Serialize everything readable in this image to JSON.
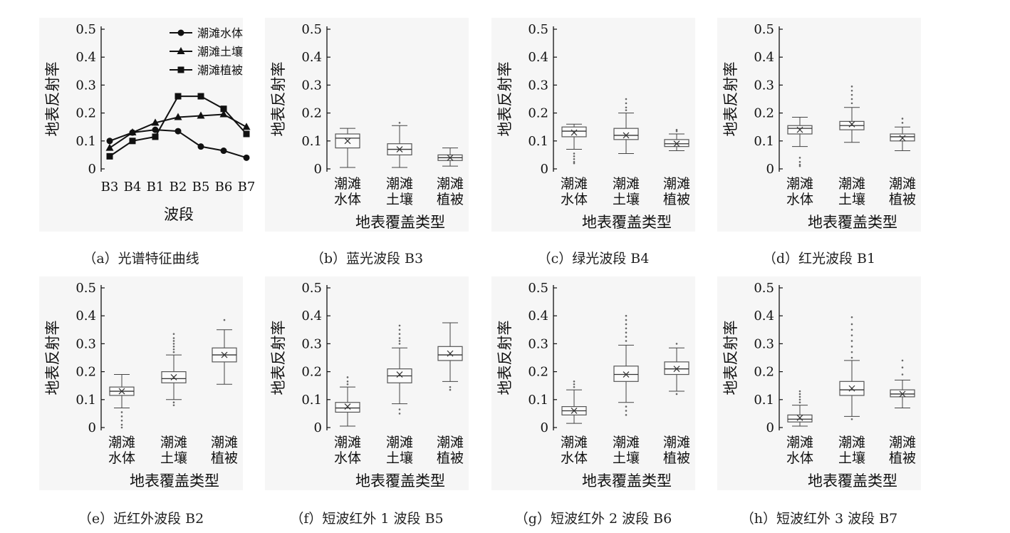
{
  "chart_data": [
    {
      "id": "a",
      "type": "line",
      "caption": "（a）光谱特征曲线",
      "xlabel": "波段",
      "ylabel": "地表反射率",
      "categories": [
        "B3",
        "B4",
        "B1",
        "B2",
        "B5",
        "B6",
        "B7"
      ],
      "ylim": [
        0,
        0.5
      ],
      "yticks": [
        "0",
        "0.1",
        "0.2",
        "0.3",
        "0.4",
        "0.5"
      ],
      "legend_position": "top-right",
      "series": [
        {
          "name": "潮滩水体",
          "marker": "circle",
          "values": [
            0.1,
            0.13,
            0.14,
            0.135,
            0.08,
            0.065,
            0.04
          ]
        },
        {
          "name": "潮滩土壤",
          "marker": "triangle",
          "values": [
            0.075,
            0.13,
            0.165,
            0.185,
            0.19,
            0.195,
            0.15
          ]
        },
        {
          "name": "潮滩植被",
          "marker": "square",
          "values": [
            0.045,
            0.1,
            0.115,
            0.26,
            0.26,
            0.215,
            0.125
          ]
        }
      ]
    },
    {
      "id": "b",
      "type": "box",
      "caption": "（b）蓝光波段 B3",
      "xlabel": "地表覆盖类型",
      "ylabel": "地表反射率",
      "categories": [
        [
          "潮滩",
          "水体"
        ],
        [
          "潮滩",
          "土壤"
        ],
        [
          "潮滩",
          "植被"
        ]
      ],
      "ylim": [
        0,
        0.5
      ],
      "yticks": [
        "0",
        "0.1",
        "0.2",
        "0.3",
        "0.4",
        "0.5"
      ],
      "boxes": [
        {
          "min": 0.005,
          "q1": 0.075,
          "median": 0.11,
          "q3": 0.125,
          "max": 0.145,
          "mean": 0.1,
          "outliers": []
        },
        {
          "min": 0.005,
          "q1": 0.05,
          "median": 0.07,
          "q3": 0.09,
          "max": 0.155,
          "mean": 0.07,
          "outliers": [
            0.165
          ]
        },
        {
          "min": 0.01,
          "q1": 0.03,
          "median": 0.04,
          "q3": 0.05,
          "max": 0.075,
          "mean": 0.04,
          "outliers": []
        }
      ]
    },
    {
      "id": "c",
      "type": "box",
      "caption": "（c）绿光波段 B4",
      "xlabel": "地表覆盖类型",
      "ylabel": "地表反射率",
      "categories": [
        [
          "潮滩",
          "水体"
        ],
        [
          "潮滩",
          "土壤"
        ],
        [
          "潮滩",
          "植被"
        ]
      ],
      "ylim": [
        0,
        0.5
      ],
      "yticks": [
        "0",
        "0.1",
        "0.2",
        "0.3",
        "0.4",
        "0.5"
      ],
      "boxes": [
        {
          "min": 0.07,
          "q1": 0.115,
          "median": 0.135,
          "q3": 0.15,
          "max": 0.16,
          "mean": 0.13,
          "outliers": [
            0.055,
            0.045,
            0.035,
            0.025,
            0.02
          ]
        },
        {
          "min": 0.055,
          "q1": 0.105,
          "median": 0.12,
          "q3": 0.145,
          "max": 0.2,
          "mean": 0.12,
          "outliers": [
            0.21,
            0.22,
            0.235,
            0.25
          ]
        },
        {
          "min": 0.065,
          "q1": 0.08,
          "median": 0.09,
          "q3": 0.105,
          "max": 0.125,
          "mean": 0.09,
          "outliers": [
            0.135,
            0.14
          ]
        }
      ]
    },
    {
      "id": "d",
      "type": "box",
      "caption": "（d）红光波段 B1",
      "xlabel": "地表覆盖类型",
      "ylabel": "地表反射率",
      "categories": [
        [
          "潮滩",
          "水体"
        ],
        [
          "潮滩",
          "土壤"
        ],
        [
          "潮滩",
          "植被"
        ]
      ],
      "ylim": [
        0,
        0.5
      ],
      "yticks": [
        "0",
        "0.1",
        "0.2",
        "0.3",
        "0.4",
        "0.5"
      ],
      "boxes": [
        {
          "min": 0.08,
          "q1": 0.125,
          "median": 0.145,
          "q3": 0.155,
          "max": 0.185,
          "mean": 0.14,
          "outliers": [
            0.04,
            0.025,
            0.015,
            0.01
          ]
        },
        {
          "min": 0.095,
          "q1": 0.14,
          "median": 0.155,
          "q3": 0.17,
          "max": 0.22,
          "mean": 0.16,
          "outliers": [
            0.235,
            0.25,
            0.265,
            0.28,
            0.295
          ]
        },
        {
          "min": 0.065,
          "q1": 0.1,
          "median": 0.115,
          "q3": 0.125,
          "max": 0.15,
          "mean": 0.11,
          "outliers": [
            0.165,
            0.18
          ]
        }
      ]
    },
    {
      "id": "e",
      "type": "box",
      "caption": "（e）近红外波段 B2",
      "xlabel": "地表覆盖类型",
      "ylabel": "地表反射率",
      "categories": [
        [
          "潮滩",
          "水体"
        ],
        [
          "潮滩",
          "土壤"
        ],
        [
          "潮滩",
          "植被"
        ]
      ],
      "ylim": [
        0,
        0.5
      ],
      "yticks": [
        "0",
        "0.1",
        "0.2",
        "0.3",
        "0.4",
        "0.5"
      ],
      "boxes": [
        {
          "min": 0.07,
          "q1": 0.115,
          "median": 0.13,
          "q3": 0.145,
          "max": 0.19,
          "mean": 0.13,
          "outliers": [
            0.055,
            0.04,
            0.025,
            0.01,
            0.0
          ]
        },
        {
          "min": 0.1,
          "q1": 0.16,
          "median": 0.175,
          "q3": 0.2,
          "max": 0.26,
          "mean": 0.18,
          "outliers": [
            0.09,
            0.08,
            0.27,
            0.28,
            0.29,
            0.3,
            0.31,
            0.32,
            0.335
          ]
        },
        {
          "min": 0.155,
          "q1": 0.235,
          "median": 0.26,
          "q3": 0.285,
          "max": 0.35,
          "mean": 0.26,
          "outliers": [
            0.385
          ]
        }
      ]
    },
    {
      "id": "f",
      "type": "box",
      "caption": "（f）短波红外 1 波段 B5",
      "xlabel": "地表覆盖类型",
      "ylabel": "地表反射率",
      "categories": [
        [
          "潮滩",
          "水体"
        ],
        [
          "潮滩",
          "土壤"
        ],
        [
          "潮滩",
          "植被"
        ]
      ],
      "ylim": [
        0,
        0.5
      ],
      "yticks": [
        "0",
        "0.1",
        "0.2",
        "0.3",
        "0.4",
        "0.5"
      ],
      "boxes": [
        {
          "min": 0.005,
          "q1": 0.055,
          "median": 0.07,
          "q3": 0.09,
          "max": 0.145,
          "mean": 0.075,
          "outliers": [
            0.155,
            0.165,
            0.18
          ]
        },
        {
          "min": 0.085,
          "q1": 0.16,
          "median": 0.185,
          "q3": 0.21,
          "max": 0.285,
          "mean": 0.19,
          "outliers": [
            0.065,
            0.05,
            0.3,
            0.31,
            0.32,
            0.335,
            0.35,
            0.365
          ]
        },
        {
          "min": 0.165,
          "q1": 0.24,
          "median": 0.26,
          "q3": 0.29,
          "max": 0.375,
          "mean": 0.265,
          "outliers": [
            0.145,
            0.135
          ]
        }
      ]
    },
    {
      "id": "g",
      "type": "box",
      "caption": "（g）短波红外 2 波段 B6",
      "xlabel": "地表覆盖类型",
      "ylabel": "地表反射率",
      "categories": [
        [
          "潮滩",
          "水体"
        ],
        [
          "潮滩",
          "土壤"
        ],
        [
          "潮滩",
          "植被"
        ]
      ],
      "ylim": [
        0,
        0.5
      ],
      "yticks": [
        "0",
        "0.1",
        "0.2",
        "0.3",
        "0.4",
        "0.5"
      ],
      "boxes": [
        {
          "min": 0.015,
          "q1": 0.045,
          "median": 0.06,
          "q3": 0.075,
          "max": 0.135,
          "mean": 0.06,
          "outliers": [
            0.145,
            0.155,
            0.165
          ]
        },
        {
          "min": 0.09,
          "q1": 0.165,
          "median": 0.19,
          "q3": 0.22,
          "max": 0.295,
          "mean": 0.19,
          "outliers": [
            0.075,
            0.06,
            0.045,
            0.31,
            0.325,
            0.34,
            0.355,
            0.37,
            0.385,
            0.4
          ]
        },
        {
          "min": 0.13,
          "q1": 0.19,
          "median": 0.21,
          "q3": 0.235,
          "max": 0.285,
          "mean": 0.21,
          "outliers": [
            0.12,
            0.3
          ]
        }
      ]
    },
    {
      "id": "h",
      "type": "box",
      "caption": "（h）短波红外 3 波段 B7",
      "xlabel": "地表覆盖类型",
      "ylabel": "地表反射率",
      "categories": [
        [
          "潮滩",
          "水体"
        ],
        [
          "潮滩",
          "土壤"
        ],
        [
          "潮滩",
          "植被"
        ]
      ],
      "ylim": [
        0,
        0.5
      ],
      "yticks": [
        "0",
        "0.1",
        "0.2",
        "0.3",
        "0.4",
        "0.5"
      ],
      "boxes": [
        {
          "min": 0.005,
          "q1": 0.02,
          "median": 0.03,
          "q3": 0.045,
          "max": 0.08,
          "mean": 0.035,
          "outliers": [
            0.09,
            0.1,
            0.11,
            0.12,
            0.13
          ]
        },
        {
          "min": 0.04,
          "q1": 0.115,
          "median": 0.135,
          "q3": 0.165,
          "max": 0.24,
          "mean": 0.14,
          "outliers": [
            0.03,
            0.25,
            0.27,
            0.29,
            0.31,
            0.33,
            0.35,
            0.37,
            0.395
          ]
        },
        {
          "min": 0.07,
          "q1": 0.11,
          "median": 0.12,
          "q3": 0.135,
          "max": 0.17,
          "mean": 0.12,
          "outliers": [
            0.19,
            0.215,
            0.24
          ]
        }
      ]
    }
  ]
}
